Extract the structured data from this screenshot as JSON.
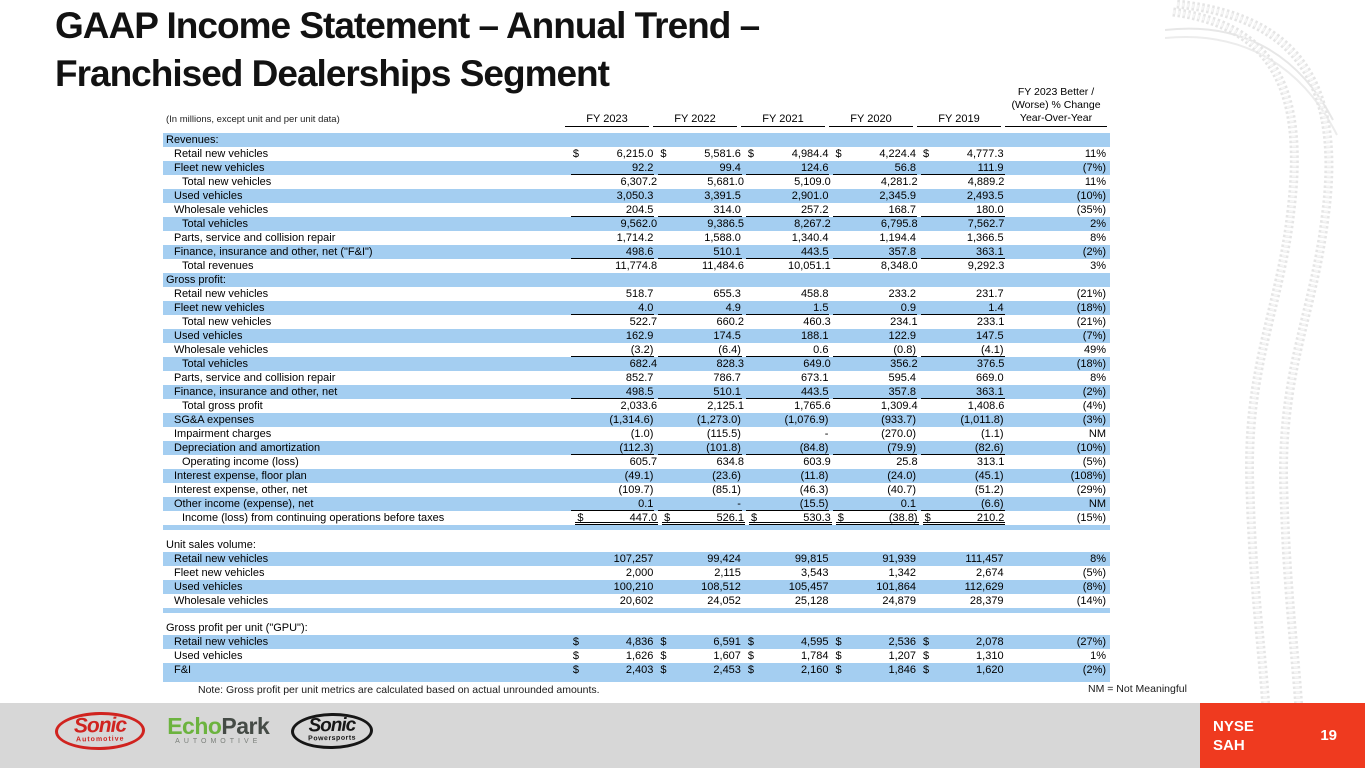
{
  "slide": {
    "title_line1": "GAAP Income Statement – Annual Trend –",
    "title_line2": "Franchised Dealerships Segment",
    "note": "Note: Gross profit per unit metrics are calculated based on actual unrounded amounts.",
    "nm_note": "NM = Not Meaningful",
    "page_number": "19",
    "ticker_line1": "NYSE",
    "ticker_line2": "SAH"
  },
  "colors": {
    "row_stripe_blue": "#A4CEF1",
    "badge_red": "#EF3A1F",
    "footer_gray": "#D7D7D7",
    "echopark_green": "#6CB33F",
    "sonic_red": "#d0231f"
  },
  "logos": {
    "sonic_automotive": {
      "name": "Sonic",
      "sub": "Automotive"
    },
    "echopark": {
      "main_a": "Echo",
      "main_b": "Park",
      "sub": "AUTOMOTIVE"
    },
    "sonic_powersports": {
      "name": "Sonic",
      "sub": "Powersports"
    }
  },
  "table": {
    "label_header": "(In millions, except unit and per unit data)",
    "col_headers": [
      "FY 2023",
      "FY 2022",
      "FY 2021",
      "FY 2020",
      "FY 2019"
    ],
    "change_header_lines": [
      "FY 2023 Better /",
      "(Worse) % Change",
      "Year-Over-Year"
    ],
    "rows": [
      {
        "label": "Revenues:",
        "type": "section",
        "indent": 0,
        "shaded": true
      },
      {
        "label": "Retail new vehicles",
        "indent": 1,
        "dollar": true,
        "values": [
          "6,215.0",
          "5,581.6",
          "4,984.4",
          "4,224.4",
          "4,777.3"
        ],
        "change": "11%"
      },
      {
        "label": "Fleet new vehicles",
        "indent": 1,
        "shaded": true,
        "ul": true,
        "values": [
          "92.2",
          "99.4",
          "124.6",
          "56.8",
          "111.9"
        ],
        "change": "(7%)"
      },
      {
        "label": "Total new vehicles",
        "indent": 2,
        "values": [
          "6,307.2",
          "5,681.0",
          "5,109.0",
          "4,281.2",
          "4,889.2"
        ],
        "change": "11%"
      },
      {
        "label": "Used vehicles",
        "indent": 1,
        "shaded": true,
        "values": [
          "3,050.3",
          "3,391.5",
          "2,901.0",
          "2,345.9",
          "2,493.5"
        ],
        "change": "(10%)"
      },
      {
        "label": "Wholesale vehicles",
        "indent": 1,
        "ul": true,
        "values": [
          "204.5",
          "314.0",
          "257.2",
          "168.7",
          "180.0"
        ],
        "change": "(35%)"
      },
      {
        "label": "Total vehicles",
        "indent": 2,
        "shaded": true,
        "values": [
          "9,562.0",
          "9,386.5",
          "8,267.2",
          "6,795.8",
          "7,562.7"
        ],
        "change": "2%"
      },
      {
        "label": "Parts, service and collision repair",
        "indent": 1,
        "values": [
          "1,714.2",
          "1,588.0",
          "1,340.4",
          "1,194.4",
          "1,366.5"
        ],
        "change": "8%"
      },
      {
        "label": "Finance, insurance and other, net (\"F&I\")",
        "indent": 1,
        "shaded": true,
        "ul": true,
        "values": [
          "498.6",
          "510.1",
          "443.5",
          "357.8",
          "363.1"
        ],
        "change": "(2%)"
      },
      {
        "label": "Total revenues",
        "indent": 2,
        "values": [
          "11,774.8",
          "11,484.6",
          "10,051.1",
          "8,348.0",
          "9,292.3"
        ],
        "change": "3%"
      },
      {
        "label": "Gross profit:",
        "type": "section",
        "indent": 0,
        "shaded": true
      },
      {
        "label": "Retail new vehicles",
        "indent": 1,
        "values": [
          "518.7",
          "655.3",
          "458.8",
          "233.2",
          "231.7"
        ],
        "change": "(21%)"
      },
      {
        "label": "Fleet new vehicles",
        "indent": 1,
        "shaded": true,
        "ul": true,
        "values": [
          "4.0",
          "4.9",
          "1.5",
          "0.9",
          "1.4"
        ],
        "change": "(18%)"
      },
      {
        "label": "Total new vehicles",
        "indent": 2,
        "values": [
          "522.7",
          "660.2",
          "460.3",
          "234.1",
          "233.1"
        ],
        "change": "(21%)"
      },
      {
        "label": "Used vehicles",
        "indent": 1,
        "shaded": true,
        "values": [
          "162.9",
          "174.5",
          "188.1",
          "122.9",
          "147.5"
        ],
        "change": "(7%)"
      },
      {
        "label": "Wholesale vehicles",
        "indent": 1,
        "ul": true,
        "values": [
          "(3.2)",
          "(6.4)",
          "0.6",
          "(0.8)",
          "(4.1)"
        ],
        "change": "49%"
      },
      {
        "label": "Total vehicles",
        "indent": 2,
        "shaded": true,
        "values": [
          "682.4",
          "828.3",
          "649.0",
          "356.2",
          "376.5"
        ],
        "change": "(18%)"
      },
      {
        "label": "Parts, service and collision repair",
        "indent": 1,
        "values": [
          "852.7",
          "786.7",
          "673.1",
          "595.4",
          "669.0"
        ],
        "change": "8%"
      },
      {
        "label": "Finance, insurance and other, net",
        "indent": 1,
        "shaded": true,
        "ul": true,
        "values": [
          "498.5",
          "510.1",
          "443.5",
          "357.8",
          "363.1"
        ],
        "change": "(2%)"
      },
      {
        "label": "Total gross profit",
        "indent": 2,
        "values": [
          "2,033.6",
          "2,125.1",
          "1,765.6",
          "1,309.4",
          "1,408.6"
        ],
        "change": "(4%)"
      },
      {
        "label": "SG&A expenses",
        "indent": 1,
        "shaded": true,
        "values": [
          "(1,314.6)",
          "(1,273.0)",
          "(1,076.9)",
          "(933.7)",
          "(1,011.8)"
        ],
        "change": "(3%)"
      },
      {
        "label": "Impairment charges",
        "indent": 1,
        "values": [
          "(1.0)",
          "(115.5)",
          "-",
          "(270.0)",
          "(1.1)"
        ],
        "change": "NM"
      },
      {
        "label": "Depreciation and amortization",
        "indent": 1,
        "shaded": true,
        "ul": true,
        "values": [
          "(112.3)",
          "(101.8)",
          "(84.8)",
          "(79.9)",
          "(82.6)"
        ],
        "change": "(10%)"
      },
      {
        "label": "Operating income (loss)",
        "indent": 2,
        "values": [
          "605.7",
          "634.8",
          "603.9",
          "25.8",
          "313.1"
        ],
        "change": "(5%)"
      },
      {
        "label": "Interest expense, floor plan",
        "indent": 1,
        "shaded": true,
        "values": [
          "(49.1)",
          "(23.6)",
          "(11.8)",
          "(24.0)",
          "(45.1)"
        ],
        "change": "(108%)"
      },
      {
        "label": "Interest expense, other, net",
        "indent": 1,
        "values": [
          "(109.7)",
          "(85.1)",
          "(46.3)",
          "(40.7)",
          "(51.2)"
        ],
        "change": "(29%)"
      },
      {
        "label": "Other income (expense), net",
        "indent": 1,
        "shaded": true,
        "ul": true,
        "values": [
          "0.1",
          "-",
          "(15.5)",
          "0.1",
          "(6.6)"
        ],
        "change": "NM"
      },
      {
        "label": "Income (loss) from continuing operations before taxes",
        "indent": 2,
        "dollar": true,
        "dbl": true,
        "values": [
          "447.0",
          "526.1",
          "530.3",
          "(38.8)",
          "210.2"
        ],
        "change": "(15%)"
      },
      {
        "type": "spacer-thin",
        "shaded": true
      },
      {
        "type": "spacer-gap"
      },
      {
        "label": "Unit sales volume:",
        "type": "section",
        "indent": 0
      },
      {
        "label": "Retail new vehicles",
        "indent": 1,
        "shaded": true,
        "values": [
          "107,257",
          "99,424",
          "99,815",
          "91,939",
          "111,457"
        ],
        "change": "8%"
      },
      {
        "label": "Fleet new vehicles",
        "indent": 1,
        "values": [
          "2,000",
          "2,115",
          "3,543",
          "1,342",
          "2,674"
        ],
        "change": "(5%)"
      },
      {
        "label": "Used vehicles",
        "indent": 1,
        "shaded": true,
        "values": [
          "100,210",
          "108,512",
          "105,457",
          "101,864",
          "112,629"
        ],
        "change": "(8%)"
      },
      {
        "label": "Wholesale vehicles",
        "indent": 1,
        "values": [
          "20,602",
          "24,052",
          "25,128",
          "24,879",
          "28,379"
        ],
        "change": "(14%)"
      },
      {
        "type": "spacer-thin",
        "shaded": true
      },
      {
        "type": "spacer-gap"
      },
      {
        "label": "Gross profit per unit (\"GPU\"):",
        "type": "section",
        "indent": 0
      },
      {
        "label": "Retail new vehicles",
        "indent": 1,
        "shaded": true,
        "dollar": true,
        "values": [
          "4,836",
          "6,591",
          "4,595",
          "2,536",
          "2,078"
        ],
        "change": "(27%)"
      },
      {
        "label": "Used vehicles",
        "indent": 1,
        "dollar": true,
        "values": [
          "1,626",
          "1,607",
          "1,784",
          "1,207",
          "1,310"
        ],
        "change": "1%"
      },
      {
        "label": "F&I",
        "indent": 1,
        "shaded": true,
        "dollar": true,
        "values": [
          "2,403",
          "2,453",
          "2,160",
          "1,846",
          "1,620"
        ],
        "change": "(2%)"
      },
      {
        "type": "spacer-thin",
        "shaded": true
      }
    ]
  }
}
